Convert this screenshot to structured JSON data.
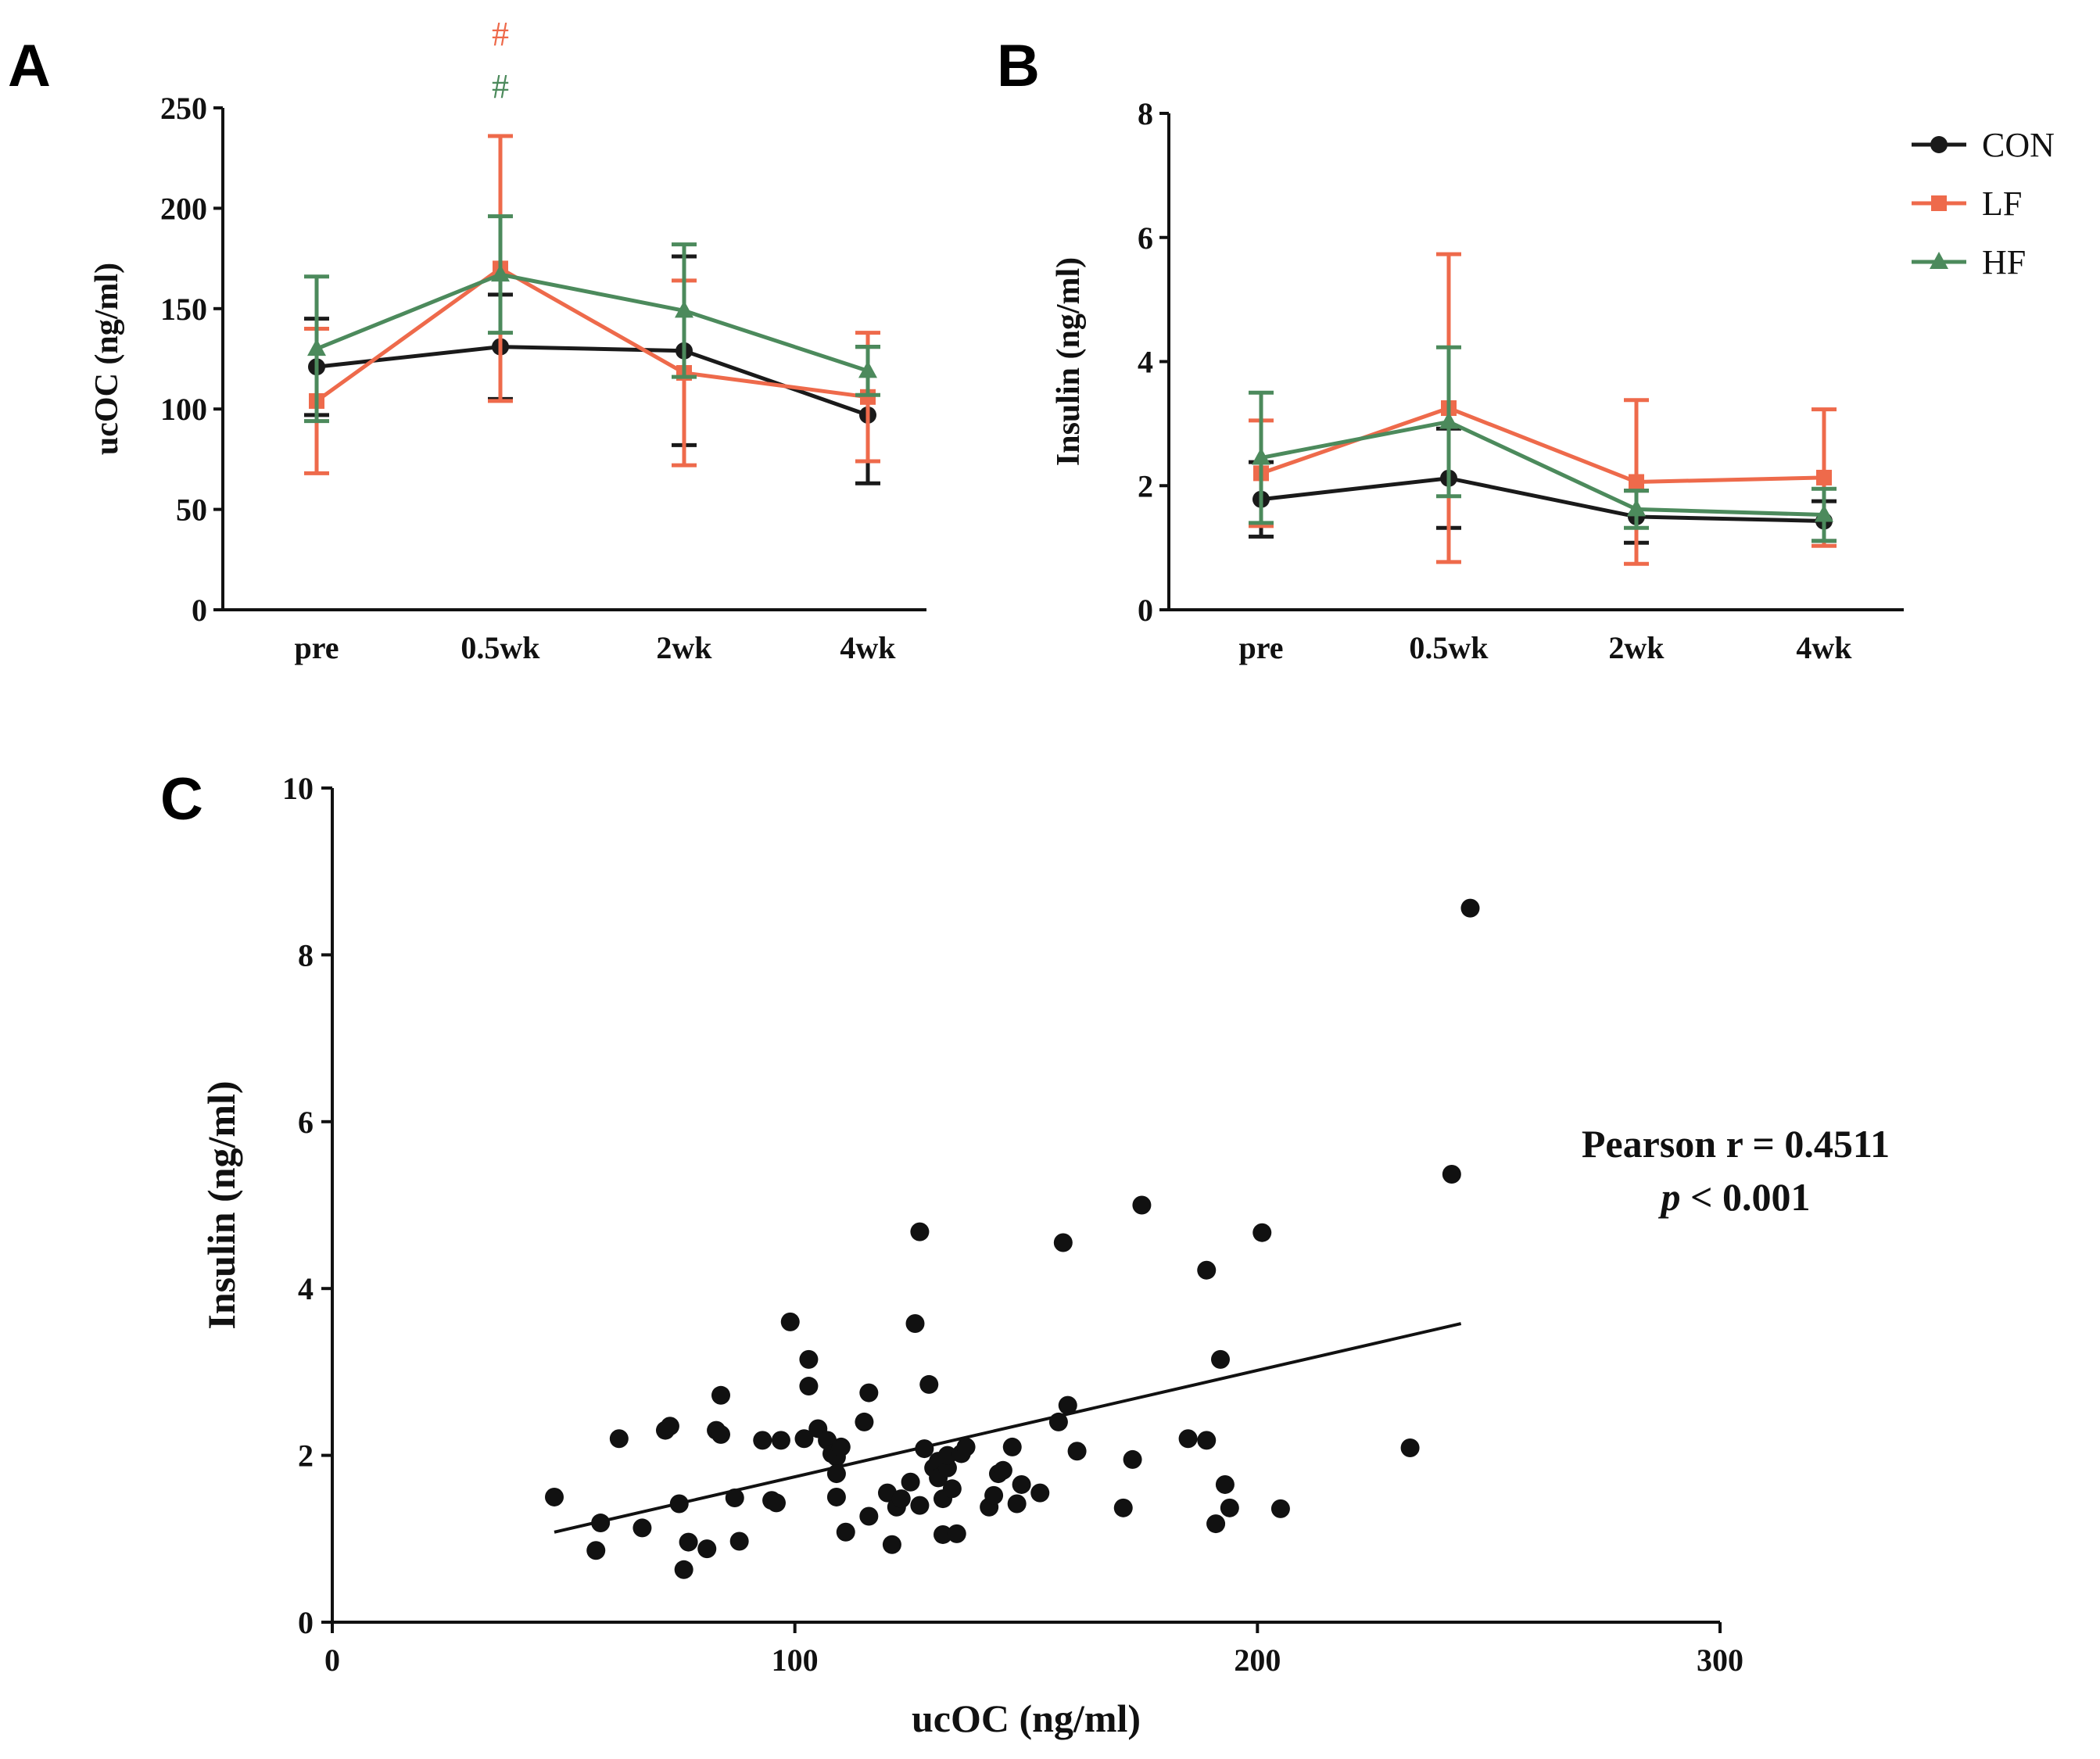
{
  "colors": {
    "CON": "#1a1a1a",
    "LF": "#ee6a4b",
    "HF": "#4c8a5c"
  },
  "chart_data": [
    {
      "id": "A",
      "panel_label": "A",
      "type": "line",
      "title": "",
      "xlabel": "",
      "ylabel": "ucOC (ng/ml)",
      "categories": [
        "pre",
        "0.5wk",
        "2wk",
        "4wk"
      ],
      "ylim": [
        0,
        250
      ],
      "yticks": [
        "0",
        "50",
        "100",
        "150",
        "200",
        "250"
      ],
      "series": [
        {
          "name": "CON",
          "marker": "circle",
          "values": [
            121,
            131,
            129,
            97
          ],
          "err": [
            24,
            26,
            47,
            34
          ]
        },
        {
          "name": "LF",
          "marker": "square",
          "values": [
            104,
            170,
            118,
            106
          ],
          "err": [
            36,
            66,
            46,
            32
          ]
        },
        {
          "name": "HF",
          "marker": "triangle",
          "values": [
            130,
            167,
            149,
            119
          ],
          "err": [
            36,
            29,
            33,
            12
          ]
        }
      ],
      "annotations": [
        {
          "text": "#",
          "category": "0.5wk",
          "series": "LF"
        },
        {
          "text": "#",
          "category": "0.5wk",
          "series": "HF"
        }
      ]
    },
    {
      "id": "B",
      "panel_label": "B",
      "type": "line",
      "title": "",
      "xlabel": "",
      "ylabel": "Insulin (ng/ml)",
      "categories": [
        "pre",
        "0.5wk",
        "2wk",
        "4wk"
      ],
      "ylim": [
        0,
        8
      ],
      "yticks": [
        "0",
        "2",
        "4",
        "6",
        "8"
      ],
      "legend": {
        "position": "top-right",
        "entries": [
          "CON",
          "LF",
          "HF"
        ]
      },
      "series": [
        {
          "name": "CON",
          "marker": "circle",
          "values": [
            1.78,
            2.12,
            1.5,
            1.43
          ],
          "err": [
            0.6,
            0.8,
            0.42,
            0.32
          ]
        },
        {
          "name": "LF",
          "marker": "square",
          "values": [
            2.2,
            3.25,
            2.06,
            2.13
          ],
          "err": [
            0.85,
            2.48,
            1.32,
            1.1
          ]
        },
        {
          "name": "HF",
          "marker": "triangle",
          "values": [
            2.45,
            3.03,
            1.62,
            1.53
          ],
          "err": [
            1.05,
            1.2,
            0.3,
            0.42
          ]
        }
      ]
    },
    {
      "id": "C",
      "panel_label": "C",
      "type": "scatter",
      "title": "",
      "xlabel": "ucOC (ng/ml)",
      "ylabel": "Insulin (ng/ml)",
      "xlim": [
        0,
        300
      ],
      "ylim": [
        0,
        10
      ],
      "xticks": [
        "0",
        "100",
        "200",
        "300"
      ],
      "yticks": [
        "0",
        "2",
        "4",
        "6",
        "8",
        "10"
      ],
      "fit_line": {
        "x": [
          48,
          244
        ],
        "y": [
          1.08,
          3.58
        ]
      },
      "annotation": {
        "line1": "Pearson r = 0.4511",
        "line2_italic": "p",
        "line2_rest": " < 0.001"
      },
      "points": [
        [
          48,
          1.5
        ],
        [
          57,
          0.86
        ],
        [
          58,
          1.19
        ],
        [
          62,
          2.2
        ],
        [
          67,
          1.13
        ],
        [
          72,
          2.3
        ],
        [
          73,
          2.35
        ],
        [
          75,
          1.42
        ],
        [
          76,
          0.63
        ],
        [
          77,
          0.96
        ],
        [
          81,
          0.88
        ],
        [
          83,
          2.3
        ],
        [
          84,
          2.25
        ],
        [
          84,
          2.72
        ],
        [
          87,
          1.49
        ],
        [
          88,
          0.97
        ],
        [
          93,
          2.18
        ],
        [
          95,
          1.46
        ],
        [
          96,
          1.43
        ],
        [
          97,
          2.18
        ],
        [
          99,
          3.6
        ],
        [
          102,
          2.2
        ],
        [
          103,
          3.15
        ],
        [
          103,
          2.83
        ],
        [
          105,
          2.32
        ],
        [
          107,
          2.18
        ],
        [
          108,
          2.02
        ],
        [
          109,
          1.98
        ],
        [
          109,
          1.5
        ],
        [
          109,
          1.78
        ],
        [
          110,
          2.1
        ],
        [
          111,
          1.08
        ],
        [
          115,
          2.4
        ],
        [
          116,
          2.75
        ],
        [
          116,
          1.27
        ],
        [
          120,
          1.55
        ],
        [
          121,
          0.93
        ],
        [
          122,
          1.38
        ],
        [
          123,
          1.48
        ],
        [
          125,
          1.68
        ],
        [
          126,
          3.58
        ],
        [
          127,
          4.68
        ],
        [
          127,
          1.4
        ],
        [
          128,
          2.08
        ],
        [
          129,
          2.85
        ],
        [
          130,
          1.85
        ],
        [
          131,
          1.93
        ],
        [
          131,
          1.73
        ],
        [
          132,
          1.05
        ],
        [
          132,
          1.48
        ],
        [
          133,
          1.85
        ],
        [
          133,
          2.0
        ],
        [
          134,
          1.6
        ],
        [
          135,
          1.06
        ],
        [
          136,
          2.02
        ],
        [
          137,
          2.1
        ],
        [
          142,
          1.38
        ],
        [
          143,
          1.52
        ],
        [
          144,
          1.78
        ],
        [
          145,
          1.82
        ],
        [
          147,
          2.1
        ],
        [
          148,
          1.42
        ],
        [
          149,
          1.65
        ],
        [
          153,
          1.55
        ],
        [
          157,
          2.4
        ],
        [
          158,
          4.55
        ],
        [
          159,
          2.6
        ],
        [
          161,
          2.05
        ],
        [
          171,
          1.37
        ],
        [
          173,
          1.95
        ],
        [
          175,
          5.0
        ],
        [
          185,
          2.2
        ],
        [
          189,
          4.22
        ],
        [
          189,
          2.18
        ],
        [
          191,
          1.18
        ],
        [
          192,
          3.15
        ],
        [
          193,
          1.65
        ],
        [
          194,
          1.37
        ],
        [
          201,
          4.67
        ],
        [
          205,
          1.36
        ],
        [
          233,
          2.09
        ],
        [
          242,
          5.37
        ],
        [
          246,
          8.56
        ]
      ]
    }
  ]
}
